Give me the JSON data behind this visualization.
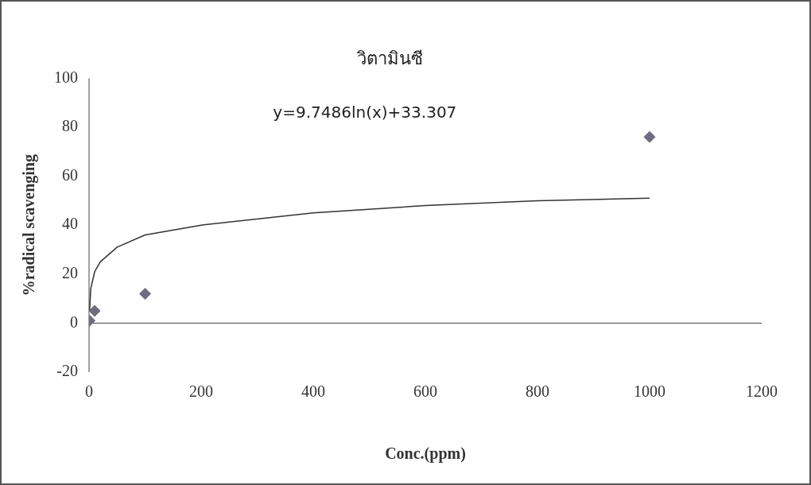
{
  "chart_data": {
    "type": "scatter",
    "title": "วิตามินซี",
    "xlabel": "Conc.(ppm)",
    "ylabel": "%radical scavenging",
    "xlim": [
      0,
      1200
    ],
    "xticks": [
      0,
      200,
      400,
      600,
      800,
      1000,
      1200
    ],
    "ylim": [
      -20,
      100
    ],
    "yticks": [
      -20,
      0,
      20,
      40,
      60,
      80,
      100
    ],
    "legend": false,
    "marker": "diamond",
    "annotations": [
      "y=9.7486ln(x)+33.307"
    ],
    "series": [
      {
        "color": "#6e6e80",
        "x": [
          1,
          10,
          100,
          1000
        ],
        "values": [
          1,
          5,
          12,
          76
        ]
      },
      {
        "type": "line",
        "marker": "none",
        "line_style": "solid",
        "color": "#333333",
        "x": [
          1,
          3,
          10,
          20,
          50,
          100,
          200,
          400,
          600,
          800,
          1000
        ],
        "values": [
          5,
          14,
          21,
          25,
          31,
          36,
          40,
          45,
          48,
          50,
          51
        ]
      }
    ]
  }
}
